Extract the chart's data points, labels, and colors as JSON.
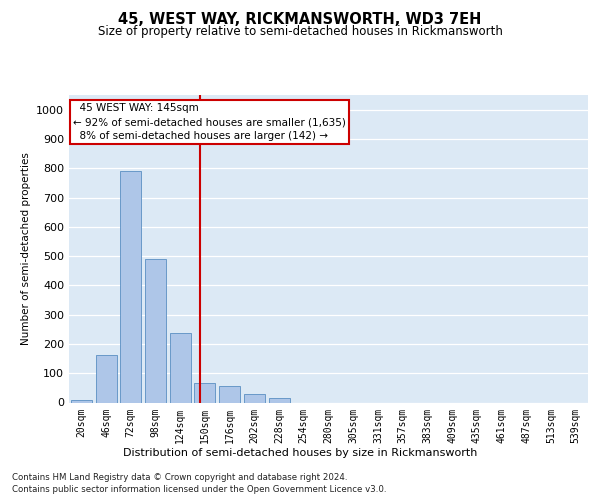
{
  "title1": "45, WEST WAY, RICKMANSWORTH, WD3 7EH",
  "title2": "Size of property relative to semi-detached houses in Rickmansworth",
  "xlabel": "Distribution of semi-detached houses by size in Rickmansworth",
  "ylabel": "Number of semi-detached properties",
  "categories": [
    "20sqm",
    "46sqm",
    "72sqm",
    "98sqm",
    "124sqm",
    "150sqm",
    "176sqm",
    "202sqm",
    "228sqm",
    "254sqm",
    "280sqm",
    "305sqm",
    "331sqm",
    "357sqm",
    "383sqm",
    "409sqm",
    "435sqm",
    "461sqm",
    "487sqm",
    "513sqm",
    "539sqm"
  ],
  "values": [
    10,
    163,
    790,
    490,
    238,
    65,
    55,
    30,
    17,
    0,
    0,
    0,
    0,
    0,
    0,
    0,
    0,
    0,
    0,
    0,
    0
  ],
  "bar_color": "#aec6e8",
  "bar_edge_color": "#5a8fc2",
  "annotation_text": "  45 WEST WAY: 145sqm  \n← 92% of semi-detached houses are smaller (1,635)\n  8% of semi-detached houses are larger (142) →  ",
  "annotation_box_color": "#ffffff",
  "annotation_box_edge_color": "#cc0000",
  "background_color": "#dce9f5",
  "ylim": [
    0,
    1050
  ],
  "yticks": [
    0,
    100,
    200,
    300,
    400,
    500,
    600,
    700,
    800,
    900,
    1000
  ],
  "footer_line1": "Contains HM Land Registry data © Crown copyright and database right 2024.",
  "footer_line2": "Contains public sector information licensed under the Open Government Licence v3.0."
}
